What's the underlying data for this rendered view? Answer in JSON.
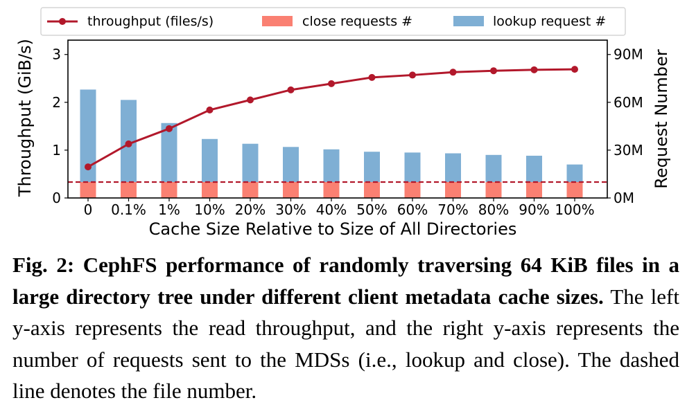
{
  "chart_data": {
    "type": "bar+line",
    "categories": [
      "0",
      "0.1%",
      "1%",
      "10%",
      "20%",
      "30%",
      "40%",
      "50%",
      "60%",
      "70%",
      "80%",
      "90%",
      "100%"
    ],
    "xlabel": "Cache Size Relative to Size of All Directories",
    "ylabel_left": "Throughput (GiB/s)",
    "ylabel_right": "Request Number",
    "ylim_left": [
      0,
      3.3
    ],
    "ylim_right": [
      0,
      99000000
    ],
    "yticks_left": [
      0,
      1,
      2,
      3
    ],
    "yticks_left_labels": [
      "0",
      "1",
      "2",
      "3"
    ],
    "yticks_right": [
      0,
      30000000,
      60000000,
      90000000
    ],
    "yticks_right_labels": [
      "0M",
      "30M",
      "60M",
      "90M"
    ],
    "series": [
      {
        "name": "throughput (files/s)",
        "type": "line",
        "axis": "left",
        "color": "#b2182b",
        "values": [
          0.65,
          1.13,
          1.45,
          1.84,
          2.05,
          2.26,
          2.39,
          2.52,
          2.57,
          2.63,
          2.66,
          2.68,
          2.69
        ]
      },
      {
        "name": "close requests #",
        "type": "bar",
        "axis": "right",
        "color": "#fa8072",
        "values": [
          10000000,
          10000000,
          10000000,
          10000000,
          10000000,
          10000000,
          10000000,
          10000000,
          10000000,
          10000000,
          10000000,
          10000000,
          10000000
        ]
      },
      {
        "name": "lookup request #",
        "type": "bar",
        "axis": "right",
        "color": "#7fafd4",
        "values": [
          68000000,
          61500000,
          47000000,
          37000000,
          34000000,
          32000000,
          30500000,
          29000000,
          28500000,
          28000000,
          27000000,
          26500000,
          21000000
        ]
      }
    ],
    "reference_line": {
      "axis": "right",
      "value": 10000000,
      "style": "dashed",
      "color": "#b2182b"
    },
    "legend": "top",
    "grid": false
  },
  "caption": {
    "bold": "Fig. 2: CephFS performance of randomly traversing 64 KiB files in a large directory tree under different client metadata cache sizes.",
    "text": " The left y-axis represents the read throughput, and the right y-axis represents the number of requests sent to the MDSs (i.e., lookup and close). The dashed line denotes the file number."
  }
}
